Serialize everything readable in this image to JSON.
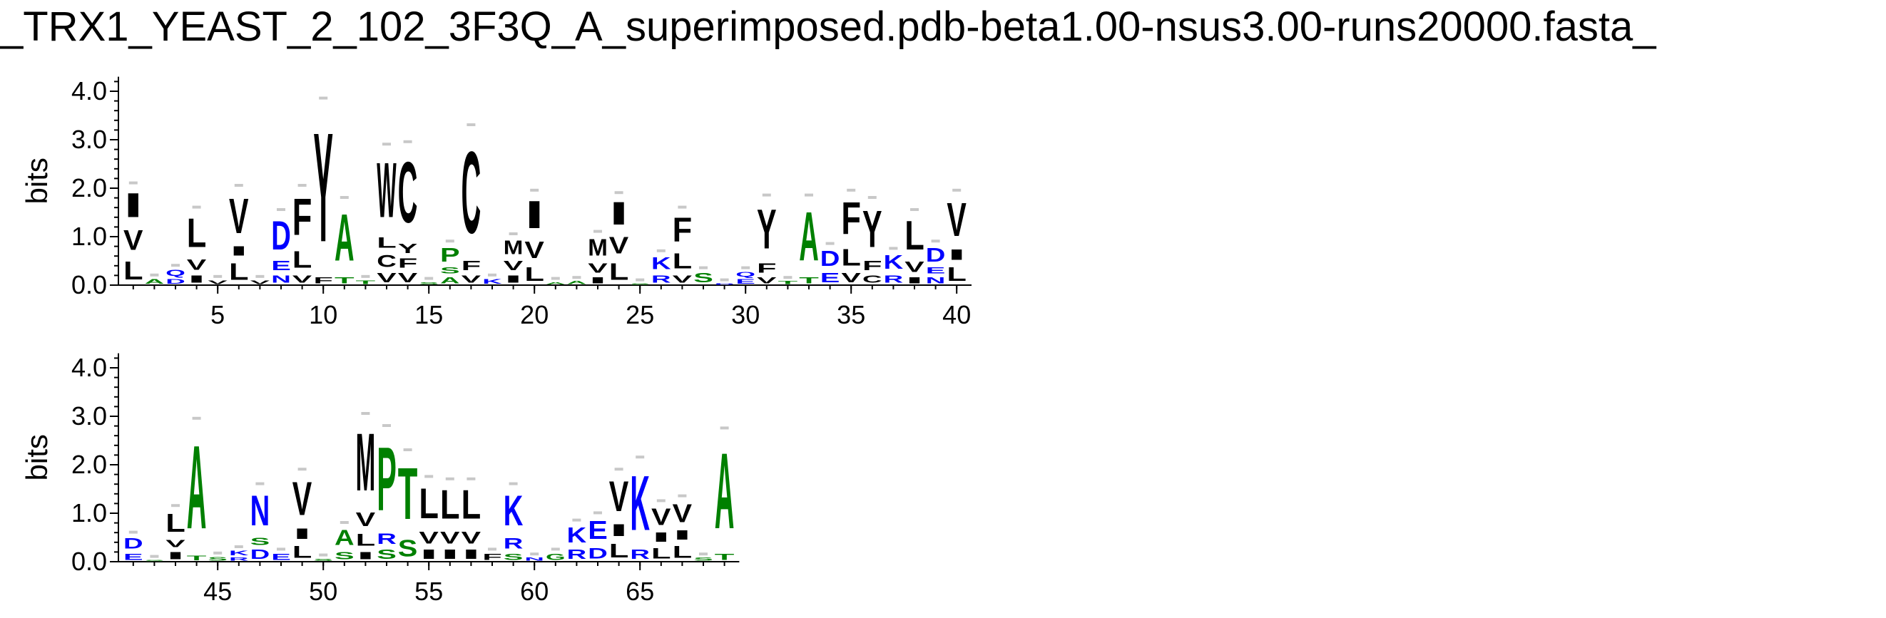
{
  "title": "_TRX1_YEAST_2_102_3F3Q_A_superimposed.pdb-beta1.00-nsus3.00-runs20000.fasta_",
  "colors": {
    "hydrophobic": "#000000",
    "polar": "#008000",
    "charged": "#0000ff",
    "error_bar": "#c8c8c8"
  },
  "chart_data": [
    {
      "type": "sequence-logo",
      "ylabel": "bits",
      "ylim": [
        0,
        4.3
      ],
      "yticks": [
        "0.0",
        "1.0",
        "2.0",
        "3.0",
        "4.0"
      ],
      "xticks": [
        "5",
        "10",
        "15",
        "20",
        "25",
        "30",
        "35",
        "40"
      ],
      "positions_range": [
        1,
        40
      ],
      "columns": [
        {
          "pos": 1,
          "letters": [
            {
              "aa": "L",
              "h": 0.6
            },
            {
              "aa": "V",
              "h": 0.65
            },
            {
              "aa": "I",
              "h": 0.8
            }
          ]
        },
        {
          "pos": 2,
          "letters": [
            {
              "aa": "A",
              "h": 0.15
            }
          ]
        },
        {
          "pos": 3,
          "letters": [
            {
              "aa": "D",
              "h": 0.15
            },
            {
              "aa": "Q",
              "h": 0.2
            }
          ]
        },
        {
          "pos": 4,
          "letters": [
            {
              "aa": "I",
              "h": 0.25
            },
            {
              "aa": "V",
              "h": 0.35
            },
            {
              "aa": "L",
              "h": 0.95
            }
          ]
        },
        {
          "pos": 5,
          "letters": [
            {
              "aa": "V",
              "h": 0.12
            }
          ]
        },
        {
          "pos": 6,
          "letters": [
            {
              "aa": "L",
              "h": 0.55
            },
            {
              "aa": "I",
              "h": 0.3
            },
            {
              "aa": "V",
              "h": 1.15
            }
          ]
        },
        {
          "pos": 7,
          "letters": [
            {
              "aa": "V",
              "h": 0.12
            }
          ]
        },
        {
          "pos": 8,
          "letters": [
            {
              "aa": "N",
              "h": 0.25
            },
            {
              "aa": "E",
              "h": 0.3
            },
            {
              "aa": "D",
              "h": 0.95
            }
          ]
        },
        {
          "pos": 9,
          "letters": [
            {
              "aa": "V",
              "h": 0.25
            },
            {
              "aa": "L",
              "h": 0.55
            },
            {
              "aa": "F",
              "h": 1.2
            }
          ]
        },
        {
          "pos": 10,
          "letters": [
            {
              "aa": "F",
              "h": 0.2
            },
            {
              "aa": "Y",
              "h": 3.6
            }
          ]
        },
        {
          "pos": 11,
          "letters": [
            {
              "aa": "T",
              "h": 0.2
            },
            {
              "aa": "A",
              "h": 1.55
            }
          ]
        },
        {
          "pos": 12,
          "letters": [
            {
              "aa": "T",
              "h": 0.12
            }
          ]
        },
        {
          "pos": 13,
          "letters": [
            {
              "aa": "V",
              "h": 0.3
            },
            {
              "aa": "C",
              "h": 0.4
            },
            {
              "aa": "L",
              "h": 0.35
            },
            {
              "aa": "W",
              "h": 1.8
            }
          ]
        },
        {
          "pos": 14,
          "letters": [
            {
              "aa": "V",
              "h": 0.3
            },
            {
              "aa": "F",
              "h": 0.3
            },
            {
              "aa": "Y",
              "h": 0.3
            },
            {
              "aa": "C",
              "h": 2.0
            }
          ]
        },
        {
          "pos": 15,
          "letters": [
            {
              "aa": "S",
              "h": 0.08
            }
          ]
        },
        {
          "pos": 16,
          "letters": [
            {
              "aa": "A",
              "h": 0.2
            },
            {
              "aa": "S",
              "h": 0.2
            },
            {
              "aa": "P",
              "h": 0.45
            }
          ]
        },
        {
          "pos": 17,
          "letters": [
            {
              "aa": "V",
              "h": 0.25
            },
            {
              "aa": "F",
              "h": 0.3
            },
            {
              "aa": "C",
              "h": 2.7
            }
          ]
        },
        {
          "pos": 18,
          "letters": [
            {
              "aa": "K",
              "h": 0.15
            }
          ]
        },
        {
          "pos": 19,
          "letters": [
            {
              "aa": "I",
              "h": 0.25
            },
            {
              "aa": "V",
              "h": 0.3
            },
            {
              "aa": "M",
              "h": 0.45
            }
          ]
        },
        {
          "pos": 20,
          "letters": [
            {
              "aa": "L",
              "h": 0.45
            },
            {
              "aa": "V",
              "h": 0.55
            },
            {
              "aa": "I",
              "h": 0.9
            }
          ]
        },
        {
          "pos": 21,
          "letters": [
            {
              "aa": "A",
              "h": 0.08
            }
          ]
        },
        {
          "pos": 22,
          "letters": [
            {
              "aa": "A",
              "h": 0.1
            }
          ]
        },
        {
          "pos": 23,
          "letters": [
            {
              "aa": "I",
              "h": 0.2
            },
            {
              "aa": "V",
              "h": 0.3
            },
            {
              "aa": "M",
              "h": 0.55
            }
          ]
        },
        {
          "pos": 24,
          "letters": [
            {
              "aa": "L",
              "h": 0.55
            },
            {
              "aa": "V",
              "h": 0.55
            },
            {
              "aa": "I",
              "h": 0.75
            }
          ]
        },
        {
          "pos": 25,
          "letters": [
            {
              "aa": "S",
              "h": 0.05
            }
          ]
        },
        {
          "pos": 26,
          "letters": [
            {
              "aa": "R",
              "h": 0.25
            },
            {
              "aa": "K",
              "h": 0.4
            }
          ]
        },
        {
          "pos": 27,
          "letters": [
            {
              "aa": "V",
              "h": 0.25
            },
            {
              "aa": "L",
              "h": 0.5
            },
            {
              "aa": "F",
              "h": 0.8
            }
          ]
        },
        {
          "pos": 28,
          "letters": [
            {
              "aa": "S",
              "h": 0.3
            }
          ]
        },
        {
          "pos": 29,
          "letters": [
            {
              "aa": "D",
              "h": 0.05
            }
          ]
        },
        {
          "pos": 30,
          "letters": [
            {
              "aa": "E",
              "h": 0.15
            },
            {
              "aa": "Q",
              "h": 0.15
            }
          ]
        },
        {
          "pos": 31,
          "letters": [
            {
              "aa": "V",
              "h": 0.2
            },
            {
              "aa": "F",
              "h": 0.3
            },
            {
              "aa": "Y",
              "h": 1.3
            }
          ]
        },
        {
          "pos": 32,
          "letters": [
            {
              "aa": "T",
              "h": 0.1
            }
          ]
        },
        {
          "pos": 33,
          "letters": [
            {
              "aa": "T",
              "h": 0.2
            },
            {
              "aa": "A",
              "h": 1.6
            }
          ]
        },
        {
          "pos": 34,
          "letters": [
            {
              "aa": "E",
              "h": 0.3
            },
            {
              "aa": "D",
              "h": 0.5
            }
          ]
        },
        {
          "pos": 35,
          "letters": [
            {
              "aa": "V",
              "h": 0.3
            },
            {
              "aa": "L",
              "h": 0.55
            },
            {
              "aa": "F",
              "h": 1.05
            }
          ]
        },
        {
          "pos": 36,
          "letters": [
            {
              "aa": "C",
              "h": 0.25
            },
            {
              "aa": "F",
              "h": 0.3
            },
            {
              "aa": "Y",
              "h": 1.2
            }
          ]
        },
        {
          "pos": 37,
          "letters": [
            {
              "aa": "R",
              "h": 0.25
            },
            {
              "aa": "K",
              "h": 0.45
            }
          ]
        },
        {
          "pos": 38,
          "letters": [
            {
              "aa": "I",
              "h": 0.2
            },
            {
              "aa": "V",
              "h": 0.35
            },
            {
              "aa": "L",
              "h": 0.95
            }
          ]
        },
        {
          "pos": 39,
          "letters": [
            {
              "aa": "N",
              "h": 0.2
            },
            {
              "aa": "E",
              "h": 0.2
            },
            {
              "aa": "D",
              "h": 0.45
            }
          ]
        },
        {
          "pos": 40,
          "letters": [
            {
              "aa": "L",
              "h": 0.45
            },
            {
              "aa": "I",
              "h": 0.35
            },
            {
              "aa": "V",
              "h": 1.1
            }
          ]
        }
      ]
    },
    {
      "type": "sequence-logo",
      "ylabel": "bits",
      "ylim": [
        0,
        4.3
      ],
      "yticks": [
        "0.0",
        "1.0",
        "2.0",
        "3.0",
        "4.0"
      ],
      "xticks": [
        "45",
        "50",
        "55",
        "60",
        "65"
      ],
      "positions_range": [
        41,
        69
      ],
      "columns": [
        {
          "pos": 41,
          "letters": [
            {
              "aa": "E",
              "h": 0.2
            },
            {
              "aa": "D",
              "h": 0.35
            }
          ]
        },
        {
          "pos": 42,
          "letters": [
            {
              "aa": "S",
              "h": 0.05
            }
          ]
        },
        {
          "pos": 43,
          "letters": [
            {
              "aa": "I",
              "h": 0.25
            },
            {
              "aa": "V",
              "h": 0.25
            },
            {
              "aa": "L",
              "h": 0.6
            }
          ]
        },
        {
          "pos": 44,
          "letters": [
            {
              "aa": "T",
              "h": 0.15
            },
            {
              "aa": "A",
              "h": 2.75
            }
          ]
        },
        {
          "pos": 45,
          "letters": [
            {
              "aa": "S",
              "h": 0.12
            }
          ]
        },
        {
          "pos": 46,
          "letters": [
            {
              "aa": "R",
              "h": 0.1
            },
            {
              "aa": "K",
              "h": 0.15
            }
          ]
        },
        {
          "pos": 47,
          "letters": [
            {
              "aa": "D",
              "h": 0.3
            },
            {
              "aa": "S",
              "h": 0.25
            },
            {
              "aa": "N",
              "h": 1.0
            }
          ]
        },
        {
          "pos": 48,
          "letters": [
            {
              "aa": "E",
              "h": 0.2
            }
          ]
        },
        {
          "pos": 49,
          "letters": [
            {
              "aa": "L",
              "h": 0.4
            },
            {
              "aa": "I",
              "h": 0.35
            },
            {
              "aa": "V",
              "h": 1.1
            }
          ]
        },
        {
          "pos": 50,
          "letters": [
            {
              "aa": "S",
              "h": 0.08
            }
          ]
        },
        {
          "pos": 51,
          "letters": [
            {
              "aa": "S",
              "h": 0.25
            },
            {
              "aa": "A",
              "h": 0.5
            }
          ]
        },
        {
          "pos": 52,
          "letters": [
            {
              "aa": "I",
              "h": 0.25
            },
            {
              "aa": "L",
              "h": 0.4
            },
            {
              "aa": "V",
              "h": 0.45
            },
            {
              "aa": "M",
              "h": 1.9
            }
          ]
        },
        {
          "pos": 53,
          "letters": [
            {
              "aa": "S",
              "h": 0.3
            },
            {
              "aa": "R",
              "h": 0.35
            },
            {
              "aa": "P",
              "h": 2.1
            }
          ]
        },
        {
          "pos": 54,
          "letters": [
            {
              "aa": "S",
              "h": 0.55
            },
            {
              "aa": "T",
              "h": 1.7
            }
          ]
        },
        {
          "pos": 55,
          "letters": [
            {
              "aa": "I",
              "h": 0.3
            },
            {
              "aa": "V",
              "h": 0.4
            },
            {
              "aa": "L",
              "h": 1.0
            }
          ]
        },
        {
          "pos": 56,
          "letters": [
            {
              "aa": "I",
              "h": 0.3
            },
            {
              "aa": "V",
              "h": 0.4
            },
            {
              "aa": "L",
              "h": 0.95
            }
          ]
        },
        {
          "pos": 57,
          "letters": [
            {
              "aa": "I",
              "h": 0.3
            },
            {
              "aa": "V",
              "h": 0.4
            },
            {
              "aa": "L",
              "h": 0.95
            }
          ]
        },
        {
          "pos": 58,
          "letters": [
            {
              "aa": "F",
              "h": 0.2
            }
          ]
        },
        {
          "pos": 59,
          "letters": [
            {
              "aa": "S",
              "h": 0.2
            },
            {
              "aa": "R",
              "h": 0.35
            },
            {
              "aa": "K",
              "h": 1.0
            }
          ]
        },
        {
          "pos": 60,
          "letters": [
            {
              "aa": "N",
              "h": 0.1
            }
          ]
        },
        {
          "pos": 61,
          "letters": [
            {
              "aa": "G",
              "h": 0.2
            }
          ]
        },
        {
          "pos": 62,
          "letters": [
            {
              "aa": "R",
              "h": 0.3
            },
            {
              "aa": "K",
              "h": 0.5
            }
          ]
        },
        {
          "pos": 63,
          "letters": [
            {
              "aa": "D",
              "h": 0.35
            },
            {
              "aa": "E",
              "h": 0.6
            }
          ]
        },
        {
          "pos": 64,
          "letters": [
            {
              "aa": "L",
              "h": 0.45
            },
            {
              "aa": "I",
              "h": 0.4
            },
            {
              "aa": "V",
              "h": 1.0
            }
          ]
        },
        {
          "pos": 65,
          "letters": [
            {
              "aa": "R",
              "h": 0.3
            },
            {
              "aa": "K",
              "h": 1.8
            }
          ]
        },
        {
          "pos": 66,
          "letters": [
            {
              "aa": "L",
              "h": 0.35
            },
            {
              "aa": "I",
              "h": 0.3
            },
            {
              "aa": "V",
              "h": 0.55
            }
          ]
        },
        {
          "pos": 67,
          "letters": [
            {
              "aa": "L",
              "h": 0.4
            },
            {
              "aa": "I",
              "h": 0.3
            },
            {
              "aa": "V",
              "h": 0.6
            }
          ]
        },
        {
          "pos": 68,
          "letters": [
            {
              "aa": "S",
              "h": 0.1
            }
          ]
        },
        {
          "pos": 69,
          "letters": [
            {
              "aa": "T",
              "h": 0.2
            },
            {
              "aa": "A",
              "h": 2.5
            }
          ]
        }
      ]
    }
  ]
}
